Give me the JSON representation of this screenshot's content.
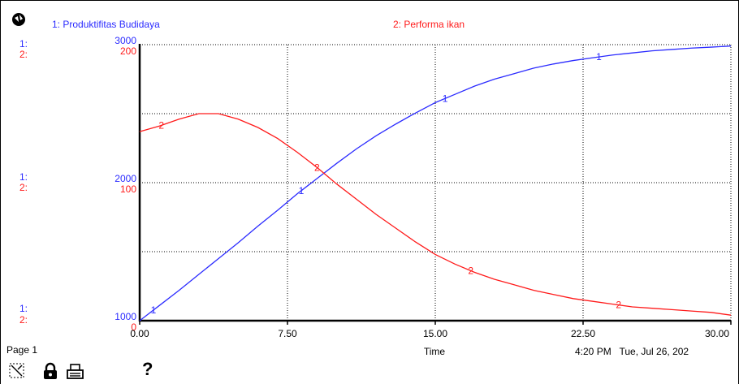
{
  "legend": {
    "series1_label": "1: Produktifitas Budidaya",
    "series2_label": "2: Performa ikan"
  },
  "axis_tags": {
    "series1_tag": "1:",
    "series2_tag": "2:"
  },
  "footer": {
    "page_label": "Page 1",
    "time_label": "Time",
    "timestamp": "4:20 PM   Tue, Jul 26, 202"
  },
  "colors": {
    "series1": "#2b2bff",
    "series2": "#ff1a1a",
    "grid": "#000000"
  },
  "icons": [
    "graph-pad-icon",
    "pin-icon",
    "lock-icon",
    "print-icon",
    "help-icon"
  ],
  "chart_data": {
    "type": "line",
    "x_axis": {
      "label": "Time",
      "range": [
        0,
        30
      ],
      "ticks": [
        "0.00",
        "7.50",
        "15.00",
        "22.50",
        "30.00"
      ]
    },
    "y_axes": [
      {
        "series": "1",
        "range": [
          1000,
          3000
        ],
        "ticks": [
          "1000",
          "2000",
          "3000"
        ]
      },
      {
        "series": "2",
        "range": [
          0,
          200
        ],
        "ticks": [
          "0",
          "100",
          "200"
        ]
      }
    ],
    "grid": true,
    "series": [
      {
        "name": "1: Produktifitas Budidaya",
        "axis": 0,
        "marker": "1",
        "points": [
          [
            0,
            1000
          ],
          [
            1,
            1110
          ],
          [
            2,
            1220
          ],
          [
            3,
            1335
          ],
          [
            4,
            1450
          ],
          [
            5,
            1565
          ],
          [
            6,
            1685
          ],
          [
            7,
            1800
          ],
          [
            8,
            1920
          ],
          [
            9,
            2030
          ],
          [
            10,
            2140
          ],
          [
            11,
            2245
          ],
          [
            12,
            2340
          ],
          [
            13,
            2425
          ],
          [
            14,
            2505
          ],
          [
            15,
            2580
          ],
          [
            16,
            2640
          ],
          [
            17,
            2700
          ],
          [
            18,
            2750
          ],
          [
            19,
            2790
          ],
          [
            20,
            2830
          ],
          [
            21,
            2860
          ],
          [
            22,
            2885
          ],
          [
            23,
            2905
          ],
          [
            24,
            2925
          ],
          [
            25,
            2940
          ],
          [
            26,
            2955
          ],
          [
            27,
            2965
          ],
          [
            28,
            2975
          ],
          [
            29,
            2982
          ],
          [
            30,
            2990
          ]
        ],
        "marker_x": [
          0.7,
          8.2,
          15.5,
          23.3
        ]
      },
      {
        "name": "2: Performa ikan",
        "axis": 1,
        "marker": "2",
        "points": [
          [
            0,
            137
          ],
          [
            1,
            141
          ],
          [
            2,
            146
          ],
          [
            3,
            150
          ],
          [
            4,
            150
          ],
          [
            5,
            146
          ],
          [
            6,
            140
          ],
          [
            7,
            132
          ],
          [
            8,
            122
          ],
          [
            9,
            111
          ],
          [
            10,
            99
          ],
          [
            11,
            88
          ],
          [
            12,
            77
          ],
          [
            13,
            67
          ],
          [
            14,
            57
          ],
          [
            15,
            48
          ],
          [
            16,
            41
          ],
          [
            17,
            35
          ],
          [
            18,
            30
          ],
          [
            19,
            26
          ],
          [
            20,
            22
          ],
          [
            21,
            19
          ],
          [
            22,
            16
          ],
          [
            23,
            14
          ],
          [
            24,
            12
          ],
          [
            25,
            10
          ],
          [
            26,
            9
          ],
          [
            27,
            8
          ],
          [
            28,
            7
          ],
          [
            29,
            6
          ],
          [
            30,
            4
          ]
        ],
        "marker_x": [
          1.1,
          9.0,
          16.8,
          24.3
        ]
      }
    ]
  }
}
